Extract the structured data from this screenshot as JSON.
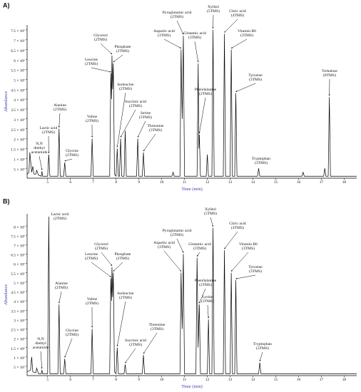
{
  "chart_data": [
    {
      "type": "line",
      "panel_label": "A)",
      "color": "#000000",
      "xlabel": "Time (min)",
      "ylabel": "Abundance",
      "xlim": [
        4.1,
        18.55
      ],
      "ylim": [
        0,
        7750000
      ],
      "xticks": [
        5,
        6,
        7,
        8,
        9,
        10,
        11,
        12,
        13,
        14,
        15,
        16,
        17,
        18
      ],
      "yticks": [
        {
          "value": 500000,
          "label": "5 × 10⁵"
        },
        {
          "value": 1000000,
          "label": "1 × 10⁶"
        },
        {
          "value": 1500000,
          "label": "1.5 × 10⁶"
        },
        {
          "value": 2000000,
          "label": "2 × 10⁶"
        },
        {
          "value": 2500000,
          "label": "2.5 × 10⁶"
        },
        {
          "value": 3000000,
          "label": "3 × 10⁶"
        },
        {
          "value": 3500000,
          "label": "3.5 × 10⁶"
        },
        {
          "value": 4000000,
          "label": "4 × 10⁶"
        },
        {
          "value": 4500000,
          "label": "4.5 × 10⁶"
        },
        {
          "value": 5000000,
          "label": "5 × 10⁶"
        },
        {
          "value": 5500000,
          "label": "5.5 × 10⁶"
        },
        {
          "value": 6000000,
          "label": "6 × 10⁶"
        },
        {
          "value": 6500000,
          "label": "6.5 × 10⁶"
        },
        {
          "value": 7000000,
          "label": "7 × 10⁶"
        },
        {
          "value": 7500000,
          "label": "7.5 × 10⁶"
        }
      ],
      "x": [
        4.1,
        4.18,
        4.22,
        4.3,
        4.35,
        4.4,
        4.48,
        4.52,
        4.6,
        4.72,
        4.75,
        4.78,
        5.0,
        5.05,
        5.1,
        5.45,
        5.5,
        5.55,
        5.7,
        5.75,
        5.8,
        6.9,
        6.95,
        7.0,
        7.72,
        7.77,
        7.8,
        7.82,
        7.85,
        7.88,
        7.93,
        8.0,
        8.05,
        8.1,
        8.15,
        8.2,
        8.25,
        8.35,
        8.4,
        8.45,
        8.9,
        8.95,
        9.0,
        9.15,
        9.2,
        9.25,
        10.45,
        10.5,
        10.55,
        10.8,
        10.85,
        10.9,
        10.95,
        11.0,
        11.55,
        11.6,
        11.63,
        11.65,
        11.7,
        11.95,
        12.0,
        12.05,
        12.2,
        12.25,
        12.3,
        12.7,
        12.75,
        12.8,
        13.0,
        13.05,
        13.1,
        13.2,
        13.25,
        13.3,
        14.2,
        14.25,
        14.3,
        16.15,
        16.2,
        16.25,
        17.1,
        17.15,
        17.2,
        17.3,
        17.35,
        17.4,
        18.55
      ],
      "values": [
        200000,
        300000,
        1300000,
        300000,
        600000,
        200000,
        200000,
        400000,
        150000,
        100000,
        350000,
        100000,
        100000,
        1200000,
        100000,
        100000,
        2500000,
        100000,
        100000,
        800000,
        100000,
        100000,
        2000000,
        100000,
        100000,
        5300000,
        4000000,
        6200000,
        4500000,
        5800000,
        200000,
        100000,
        1500000,
        100000,
        100000,
        2000000,
        100000,
        100000,
        2400000,
        100000,
        100000,
        2000000,
        100000,
        100000,
        1300000,
        100000,
        100000,
        300000,
        100000,
        100000,
        6500000,
        3000000,
        7200000,
        100000,
        100000,
        5800000,
        1500000,
        2200000,
        100000,
        100000,
        1200000,
        100000,
        100000,
        7500000,
        100000,
        100000,
        7300000,
        100000,
        100000,
        6500000,
        100000,
        100000,
        4300000,
        100000,
        100000,
        500000,
        100000,
        100000,
        300000,
        100000,
        100000,
        500000,
        100000,
        100000,
        4100000,
        100000,
        100000
      ],
      "annotations": [
        {
          "text": [
            "N,N",
            "diethyl",
            "acetamide"
          ]
        },
        {
          "text": [
            "Lactic acid",
            "(2TMS)"
          ]
        },
        {
          "text": [
            "Alanine",
            "(2TMS)"
          ]
        },
        {
          "text": [
            "Glycine",
            "(2TMS)"
          ]
        },
        {
          "text": [
            "Valine",
            "(2TMS)"
          ]
        },
        {
          "text": [
            "Leucine",
            "(2TMS)"
          ]
        },
        {
          "text": [
            "Glycerol",
            "(2TMS)"
          ]
        },
        {
          "text": [
            "Phosphate",
            "(2TMS)"
          ]
        },
        {
          "text": [
            "Isoleucine",
            "(2TMS)"
          ]
        },
        {
          "text": [
            "Succinic acid",
            "(2TMS)"
          ]
        },
        {
          "text": [
            "Serine",
            "(3TMS)"
          ]
        },
        {
          "text": [
            "Threonine",
            "(3TMS)"
          ]
        },
        {
          "text": [
            "Aspartic acid",
            "(3TMS)"
          ]
        },
        {
          "text": [
            "Pyroglutamic acid",
            "(2TMS)"
          ]
        },
        {
          "text": [
            "Glutamic acid",
            "(3TMS)"
          ]
        },
        {
          "text": [
            "Phenilalanine",
            "(2TMS)"
          ]
        },
        {
          "text": [
            "Xylitol",
            "(5TMS)"
          ]
        },
        {
          "text": [
            "Citric acid",
            "(4TMS)"
          ]
        },
        {
          "text": [
            "Vitamin B6",
            "(3TMS)"
          ]
        },
        {
          "text": [
            "Tyrosine",
            "(3TMS)"
          ]
        },
        {
          "text": [
            "Tryptophan",
            "(3TMS)"
          ]
        },
        {
          "text": [
            "Trehalose",
            "(8TMS)"
          ]
        }
      ]
    },
    {
      "type": "line",
      "panel_label": "B)",
      "color": "#000000",
      "xlabel": "Time (min)",
      "ylabel": "Abundance",
      "xlim": [
        4.1,
        18.55
      ],
      "ylim": [
        0,
        8650000
      ],
      "xticks": [
        5,
        6,
        7,
        8,
        9,
        10,
        11,
        12,
        13,
        14,
        15,
        16,
        17,
        18
      ],
      "yticks": [
        {
          "value": 500000,
          "label": "5 × 10⁵"
        },
        {
          "value": 1000000,
          "label": "1 × 10⁶"
        },
        {
          "value": 1500000,
          "label": "1.5 × 10⁶"
        },
        {
          "value": 2000000,
          "label": "2 × 10⁶"
        },
        {
          "value": 2500000,
          "label": "2.5 × 10⁶"
        },
        {
          "value": 3000000,
          "label": "3 × 10⁶"
        },
        {
          "value": 3500000,
          "label": "3.5 × 10⁶"
        },
        {
          "value": 4000000,
          "label": "4 × 10⁶"
        },
        {
          "value": 4500000,
          "label": "4.5 × 10⁶"
        },
        {
          "value": 5000000,
          "label": "5 × 10⁶"
        },
        {
          "value": 5500000,
          "label": "5.5 × 10⁶"
        },
        {
          "value": 6000000,
          "label": "6 × 10⁶"
        },
        {
          "value": 6500000,
          "label": "6.5 × 10⁶"
        },
        {
          "value": 7000000,
          "label": "7 × 10⁶"
        },
        {
          "value": 7500000,
          "label": "7.5 × 10⁶"
        },
        {
          "value": 8000000,
          "label": "8 × 10⁶"
        }
      ],
      "x": [
        4.1,
        4.25,
        4.3,
        4.35,
        4.48,
        4.52,
        4.6,
        4.72,
        4.75,
        4.78,
        5.0,
        5.05,
        5.1,
        5.45,
        5.5,
        5.55,
        5.7,
        5.75,
        5.8,
        6.9,
        6.95,
        7.0,
        7.72,
        7.77,
        7.8,
        7.82,
        7.85,
        7.88,
        7.93,
        8.0,
        8.05,
        8.1,
        8.35,
        8.4,
        8.45,
        9.15,
        9.2,
        9.25,
        10.8,
        10.85,
        10.9,
        10.95,
        11.0,
        11.5,
        11.55,
        11.6,
        11.65,
        11.7,
        12.0,
        12.05,
        12.1,
        12.2,
        12.25,
        12.3,
        12.7,
        12.75,
        12.8,
        13.0,
        13.05,
        13.1,
        13.2,
        13.25,
        13.3,
        14.25,
        14.3,
        14.35,
        18.55
      ],
      "values": [
        200000,
        300000,
        1000000,
        200000,
        150000,
        400000,
        100000,
        100000,
        300000,
        100000,
        100000,
        8500000,
        100000,
        100000,
        3800000,
        100000,
        100000,
        900000,
        100000,
        100000,
        2500000,
        100000,
        100000,
        5200000,
        4000000,
        5800000,
        4200000,
        5500000,
        200000,
        100000,
        1500000,
        100000,
        100000,
        600000,
        100000,
        100000,
        1100000,
        100000,
        100000,
        5500000,
        2500000,
        6500000,
        100000,
        100000,
        6300000,
        1500000,
        3800000,
        100000,
        100000,
        3000000,
        100000,
        100000,
        7900000,
        100000,
        100000,
        6700000,
        100000,
        100000,
        5500000,
        100000,
        100000,
        5100000,
        100000,
        100000,
        700000,
        100000,
        100000
      ],
      "annotations": [
        {
          "text": [
            "N,N",
            "diethyl",
            "acetamide"
          ]
        },
        {
          "text": [
            "Lactic acid",
            "(2TMS)"
          ]
        },
        {
          "text": [
            "Alanine",
            "(2TMS)"
          ]
        },
        {
          "text": [
            "Glycine",
            "(2TMS)"
          ]
        },
        {
          "text": [
            "Valine",
            "(2TMS)"
          ]
        },
        {
          "text": [
            "Leucine",
            "(2TMS)"
          ]
        },
        {
          "text": [
            "Glycerol",
            "(2TMS)"
          ]
        },
        {
          "text": [
            "Phosphate",
            "(2TMS)"
          ]
        },
        {
          "text": [
            "Isoleucine",
            "(2TMS)"
          ]
        },
        {
          "text": [
            "Succinic acid",
            "(2TMS)"
          ]
        },
        {
          "text": [
            "Threonine",
            "(3TMS)"
          ]
        },
        {
          "text": [
            "Aspartic acid",
            "(3TMS)"
          ]
        },
        {
          "text": [
            "Pyroglutamic acid",
            "(2TMS)"
          ]
        },
        {
          "text": [
            "Glutamic acid",
            "(3TMS)"
          ]
        },
        {
          "text": [
            "Phenilalanine",
            "(2TMS)"
          ]
        },
        {
          "text": [
            "Lysine",
            "(3TMS)"
          ]
        },
        {
          "text": [
            "Xylitol",
            "(5TMS)"
          ]
        },
        {
          "text": [
            "Citric acid",
            "(4TMS)"
          ]
        },
        {
          "text": [
            "Vitamin B6",
            "(3TMS)"
          ]
        },
        {
          "text": [
            "Tyrosine",
            "(3TMS)"
          ]
        },
        {
          "text": [
            "Tryptophan",
            "(3TMS)"
          ]
        }
      ]
    }
  ]
}
